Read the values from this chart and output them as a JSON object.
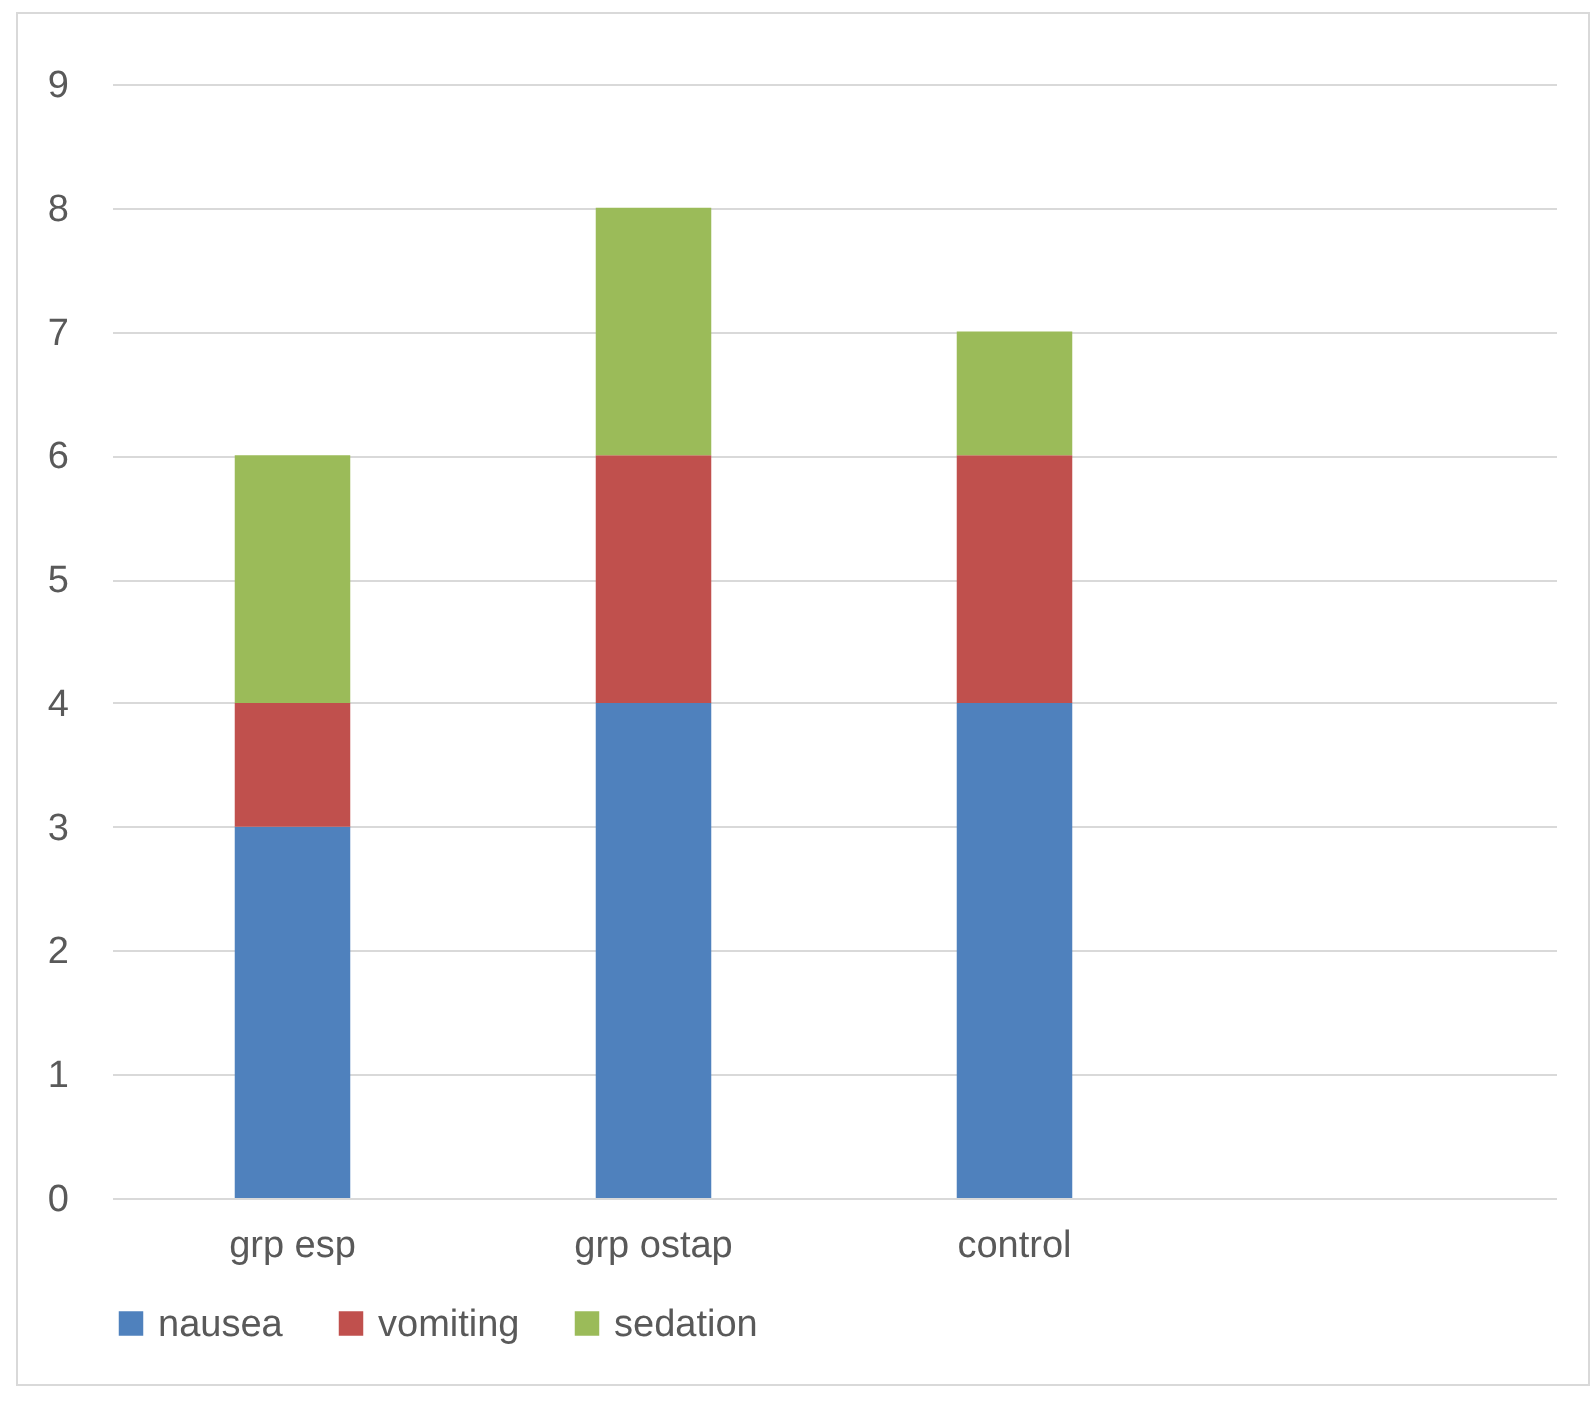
{
  "chart_data": {
    "type": "bar",
    "stacked": true,
    "categories": [
      "grp esp",
      "grp ostap",
      "control",
      null
    ],
    "series": [
      {
        "name": "nausea",
        "color": "#4f81bd",
        "values": [
          3,
          4,
          4,
          null
        ]
      },
      {
        "name": "vomiting",
        "color": "#c0504d",
        "values": [
          1,
          2,
          2,
          null
        ]
      },
      {
        "name": "sedation",
        "color": "#9bbb59",
        "values": [
          2,
          2,
          1,
          null
        ]
      }
    ],
    "ylim": [
      0,
      9
    ],
    "yticks": [
      0,
      1,
      2,
      3,
      4,
      5,
      6,
      7,
      8,
      9
    ],
    "grid": "y",
    "legend": "bottom"
  }
}
